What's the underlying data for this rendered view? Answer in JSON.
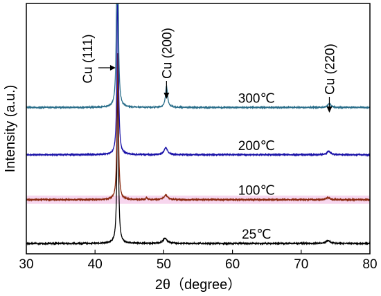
{
  "chart_data": {
    "type": "line",
    "xlabel": "2θ（degree）",
    "ylabel": "Intensity (a.u.)",
    "xlim": [
      30,
      80
    ],
    "xticks": [
      30,
      40,
      50,
      60,
      70,
      80
    ],
    "grid": false,
    "series": [
      {
        "name": "25℃",
        "color": "#000000",
        "baseline": 0.0,
        "noise": 0.004,
        "peaks": [
          {
            "x": 43.3,
            "h": 0.72,
            "w": 0.12
          },
          {
            "x": 50.2,
            "h": 0.022,
            "w": 0.35
          },
          {
            "x": 73.9,
            "h": 0.012,
            "w": 0.35
          }
        ]
      },
      {
        "name": "100℃",
        "color": "#8b2a10",
        "band": "#f7d6ee",
        "baseline": 0.185,
        "noise": 0.005,
        "peaks": [
          {
            "x": 43.3,
            "h": 0.62,
            "w": 0.12
          },
          {
            "x": 50.3,
            "h": 0.018,
            "w": 0.35
          },
          {
            "x": 47.5,
            "h": 0.01,
            "w": 0.1
          },
          {
            "x": 73.9,
            "h": 0.008,
            "w": 0.35
          }
        ]
      },
      {
        "name": "200℃",
        "color": "#1a12a8",
        "baseline": 0.375,
        "noise": 0.004,
        "peaks": [
          {
            "x": 43.3,
            "h": 0.75,
            "w": 0.12
          },
          {
            "x": 50.3,
            "h": 0.03,
            "w": 0.3
          },
          {
            "x": 74.0,
            "h": 0.015,
            "w": 0.3
          }
        ]
      },
      {
        "name": "300℃",
        "color": "#2a6e8a",
        "baseline": 0.575,
        "noise": 0.004,
        "peaks": [
          {
            "x": 43.25,
            "h": 1.3,
            "w": 0.1
          },
          {
            "x": 50.4,
            "h": 0.09,
            "w": 0.18
          },
          {
            "x": 74.1,
            "h": 0.018,
            "w": 0.25
          }
        ]
      }
    ],
    "annotations": [
      {
        "text": "Cu (111)",
        "x": 43.3
      },
      {
        "text": "Cu (200)",
        "x": 50.4
      },
      {
        "text": "Cu (220)",
        "x": 74.1
      }
    ]
  }
}
